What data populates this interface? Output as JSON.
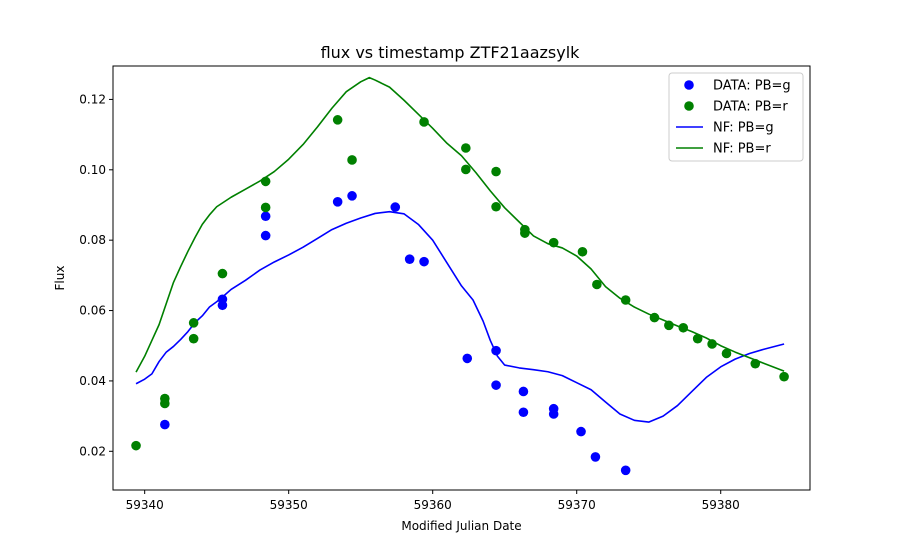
{
  "chart_data": {
    "type": "scatter",
    "title": "flux vs timestamp ZTF21aazsylk",
    "xlabel": "Modified Julian Date",
    "ylabel": "Flux",
    "xlim": [
      59337.8,
      59386.2
    ],
    "ylim": [
      0.009,
      0.1295
    ],
    "xticks": [
      59340,
      59350,
      59360,
      59370,
      59380
    ],
    "yticks": [
      0.02,
      0.04,
      0.06,
      0.08,
      0.1,
      0.12
    ],
    "ytick_labels": [
      "0.02",
      "0.04",
      "0.06",
      "0.08",
      "0.10",
      "0.12"
    ],
    "grid": false,
    "legend_position": "top-right",
    "colors": {
      "g": "#0000ff",
      "r": "#008000"
    },
    "scatter_series": [
      {
        "name": "DATA: PB=g",
        "color": "#0000ff",
        "points": [
          [
            59341.4,
            0.0276
          ],
          [
            59345.4,
            0.0632
          ],
          [
            59345.4,
            0.0615
          ],
          [
            59348.4,
            0.0868
          ],
          [
            59348.4,
            0.0813
          ],
          [
            59353.4,
            0.0909
          ],
          [
            59354.4,
            0.0926
          ],
          [
            59357.4,
            0.0894
          ],
          [
            59358.4,
            0.0746
          ],
          [
            59359.4,
            0.0739
          ],
          [
            59362.4,
            0.0464
          ],
          [
            59364.4,
            0.0486
          ],
          [
            59364.4,
            0.0388
          ],
          [
            59366.3,
            0.037
          ],
          [
            59366.3,
            0.0311
          ],
          [
            59368.4,
            0.0321
          ],
          [
            59368.4,
            0.0306
          ],
          [
            59370.3,
            0.0256
          ],
          [
            59371.3,
            0.0184
          ],
          [
            59373.4,
            0.0146
          ]
        ]
      },
      {
        "name": "DATA: PB=r",
        "color": "#008000",
        "points": [
          [
            59339.4,
            0.0216
          ],
          [
            59341.4,
            0.035
          ],
          [
            59341.4,
            0.0336
          ],
          [
            59343.4,
            0.0565
          ],
          [
            59343.4,
            0.052
          ],
          [
            59345.4,
            0.0705
          ],
          [
            59348.4,
            0.0967
          ],
          [
            59348.4,
            0.0893
          ],
          [
            59353.4,
            0.1142
          ],
          [
            59354.4,
            0.1028
          ],
          [
            59359.4,
            0.1136
          ],
          [
            59362.3,
            0.1062
          ],
          [
            59362.3,
            0.1001
          ],
          [
            59364.4,
            0.0995
          ],
          [
            59364.4,
            0.0895
          ],
          [
            59366.4,
            0.083
          ],
          [
            59366.4,
            0.082
          ],
          [
            59368.4,
            0.0793
          ],
          [
            59370.4,
            0.0767
          ],
          [
            59371.4,
            0.0674
          ],
          [
            59373.4,
            0.063
          ],
          [
            59375.4,
            0.058
          ],
          [
            59376.4,
            0.0558
          ],
          [
            59377.4,
            0.0551
          ],
          [
            59378.4,
            0.052
          ],
          [
            59379.4,
            0.0505
          ],
          [
            59380.4,
            0.0478
          ],
          [
            59382.4,
            0.0449
          ],
          [
            59384.4,
            0.0412
          ]
        ]
      }
    ],
    "line_series": [
      {
        "name": "NF: PB=g",
        "color": "#0000ff",
        "points": [
          [
            59339.4,
            0.0392
          ],
          [
            59340.0,
            0.0405
          ],
          [
            59340.5,
            0.042
          ],
          [
            59341.0,
            0.0455
          ],
          [
            59341.5,
            0.0482
          ],
          [
            59342.0,
            0.0498
          ],
          [
            59342.5,
            0.0518
          ],
          [
            59343.0,
            0.054
          ],
          [
            59343.5,
            0.0566
          ],
          [
            59344.0,
            0.0585
          ],
          [
            59344.5,
            0.061
          ],
          [
            59345.0,
            0.0625
          ],
          [
            59345.5,
            0.0642
          ],
          [
            59346.0,
            0.066
          ],
          [
            59347.0,
            0.0686
          ],
          [
            59348.0,
            0.0715
          ],
          [
            59349.0,
            0.0738
          ],
          [
            59350.0,
            0.0758
          ],
          [
            59351.0,
            0.078
          ],
          [
            59352.0,
            0.0805
          ],
          [
            59353.0,
            0.083
          ],
          [
            59354.0,
            0.0848
          ],
          [
            59355.0,
            0.0863
          ],
          [
            59356.0,
            0.0876
          ],
          [
            59357.0,
            0.0881
          ],
          [
            59358.0,
            0.0875
          ],
          [
            59359.0,
            0.0845
          ],
          [
            59360.0,
            0.08
          ],
          [
            59361.0,
            0.0735
          ],
          [
            59362.0,
            0.067
          ],
          [
            59362.8,
            0.063
          ],
          [
            59363.5,
            0.057
          ],
          [
            59364.0,
            0.0515
          ],
          [
            59364.5,
            0.047
          ],
          [
            59365.0,
            0.0445
          ],
          [
            59366.0,
            0.0437
          ],
          [
            59367.0,
            0.0432
          ],
          [
            59368.0,
            0.0426
          ],
          [
            59369.0,
            0.0415
          ],
          [
            59370.0,
            0.0395
          ],
          [
            59371.0,
            0.0375
          ],
          [
            59372.0,
            0.034
          ],
          [
            59373.0,
            0.0306
          ],
          [
            59374.0,
            0.0288
          ],
          [
            59375.0,
            0.0283
          ],
          [
            59376.0,
            0.03
          ],
          [
            59377.0,
            0.033
          ],
          [
            59378.0,
            0.037
          ],
          [
            59379.0,
            0.041
          ],
          [
            59380.0,
            0.044
          ],
          [
            59381.0,
            0.0462
          ],
          [
            59382.0,
            0.0478
          ],
          [
            59383.0,
            0.049
          ],
          [
            59384.4,
            0.0505
          ]
        ]
      },
      {
        "name": "NF: PB=r",
        "color": "#008000",
        "points": [
          [
            59339.4,
            0.0425
          ],
          [
            59340.0,
            0.047
          ],
          [
            59340.5,
            0.0515
          ],
          [
            59341.0,
            0.056
          ],
          [
            59341.5,
            0.062
          ],
          [
            59342.0,
            0.068
          ],
          [
            59342.5,
            0.0725
          ],
          [
            59343.0,
            0.0768
          ],
          [
            59343.5,
            0.0808
          ],
          [
            59344.0,
            0.0845
          ],
          [
            59344.5,
            0.0872
          ],
          [
            59345.0,
            0.0895
          ],
          [
            59346.0,
            0.0922
          ],
          [
            59347.0,
            0.0945
          ],
          [
            59348.0,
            0.0968
          ],
          [
            59349.0,
            0.0995
          ],
          [
            59350.0,
            0.103
          ],
          [
            59351.0,
            0.1072
          ],
          [
            59352.0,
            0.1122
          ],
          [
            59353.0,
            0.1175
          ],
          [
            59354.0,
            0.1222
          ],
          [
            59355.0,
            0.125
          ],
          [
            59355.6,
            0.1262
          ],
          [
            59356.0,
            0.1255
          ],
          [
            59357.0,
            0.1235
          ],
          [
            59358.0,
            0.1198
          ],
          [
            59359.0,
            0.1158
          ],
          [
            59360.0,
            0.1118
          ],
          [
            59361.0,
            0.1075
          ],
          [
            59362.0,
            0.104
          ],
          [
            59363.0,
            0.0992
          ],
          [
            59364.0,
            0.094
          ],
          [
            59365.0,
            0.0892
          ],
          [
            59366.0,
            0.0852
          ],
          [
            59367.0,
            0.0812
          ],
          [
            59368.0,
            0.079
          ],
          [
            59369.0,
            0.0778
          ],
          [
            59370.0,
            0.0755
          ],
          [
            59371.0,
            0.0718
          ],
          [
            59372.0,
            0.0668
          ],
          [
            59373.0,
            0.0635
          ],
          [
            59374.0,
            0.061
          ],
          [
            59375.0,
            0.059
          ],
          [
            59376.0,
            0.0573
          ],
          [
            59377.0,
            0.0556
          ],
          [
            59378.0,
            0.054
          ],
          [
            59379.0,
            0.0522
          ],
          [
            59380.0,
            0.05
          ],
          [
            59381.0,
            0.0482
          ],
          [
            59382.0,
            0.0466
          ],
          [
            59383.0,
            0.045
          ],
          [
            59384.4,
            0.0428
          ]
        ]
      }
    ],
    "legend": [
      {
        "label": "DATA: PB=g",
        "kind": "marker",
        "color": "#0000ff"
      },
      {
        "label": "DATA: PB=r",
        "kind": "marker",
        "color": "#008000"
      },
      {
        "label": "NF: PB=g",
        "kind": "line",
        "color": "#0000ff"
      },
      {
        "label": "NF: PB=r",
        "kind": "line",
        "color": "#008000"
      }
    ]
  }
}
